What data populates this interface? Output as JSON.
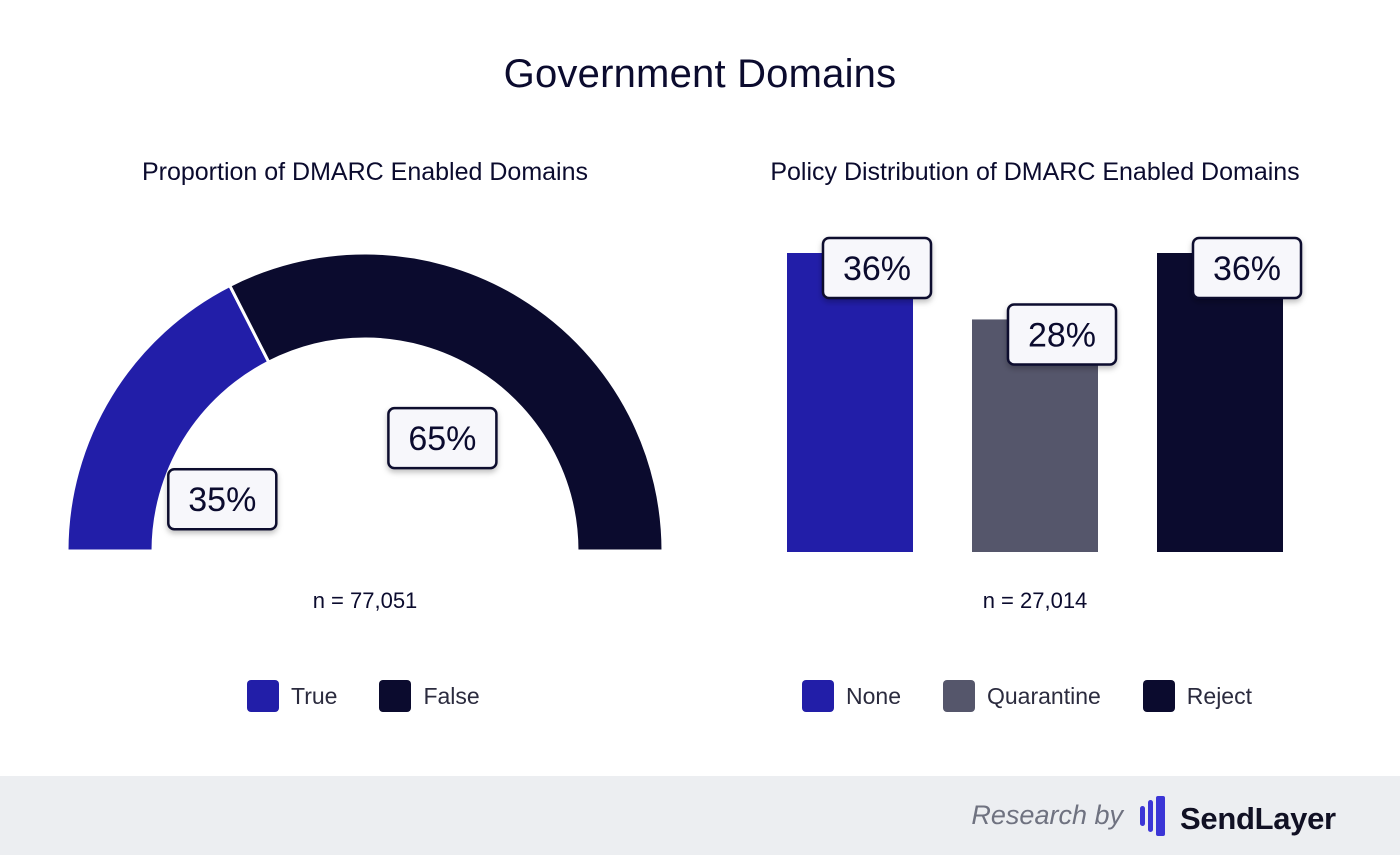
{
  "title": "Government Domains",
  "colors": {
    "true": "#221ea8",
    "false": "#0b0b2e",
    "quarantine": "#55566b",
    "text": "#0b0b2e"
  },
  "chart_data": [
    {
      "type": "pie",
      "title": "Proportion of DMARC Enabled Domains",
      "categories": [
        "True",
        "False"
      ],
      "values": [
        35,
        65
      ],
      "value_labels": [
        "35%",
        "65%"
      ],
      "colors": [
        "#221ea8",
        "#0b0b2e"
      ],
      "n_label": "n = 77,051",
      "legend": [
        "True",
        "False"
      ],
      "legend_position": "bottom"
    },
    {
      "type": "bar",
      "title": "Policy Distribution of DMARC Enabled Domains",
      "categories": [
        "None",
        "Quarantine",
        "Reject"
      ],
      "values": [
        36,
        28,
        36
      ],
      "value_labels": [
        "36%",
        "28%",
        "36%"
      ],
      "colors": [
        "#221ea8",
        "#55566b",
        "#0b0b2e"
      ],
      "ylim": [
        0,
        36
      ],
      "grid": false,
      "n_label": "n = 27,014",
      "legend": [
        "None",
        "Quarantine",
        "Reject"
      ],
      "legend_position": "bottom"
    }
  ],
  "footer": {
    "research_by": "Research by",
    "brand": "SendLayer",
    "logo_icon": "sendlayer-logo-icon"
  }
}
